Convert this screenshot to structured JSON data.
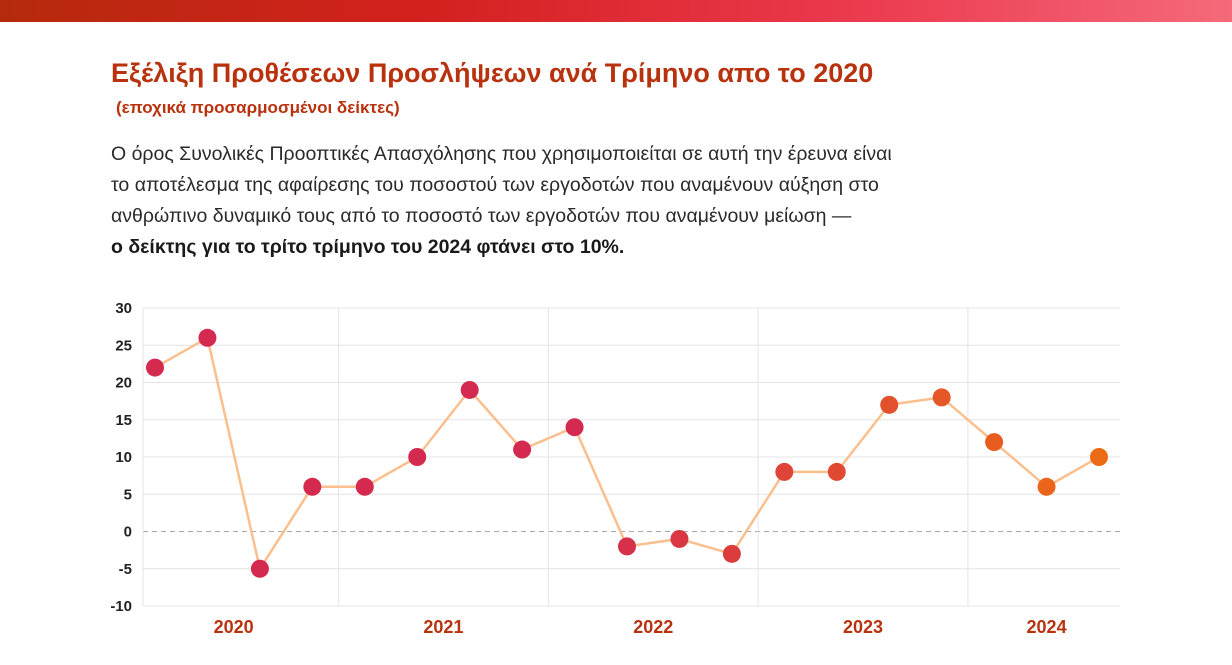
{
  "header": {
    "title": "Εξέλιξη Προθέσεων Προσλήψεων ανά Τρίμηνο απο το 2020",
    "subtitle": "(εποχικά προσαρμοσμένοι δείκτες)"
  },
  "description": {
    "line1": "Ο όρος Συνολικές Προοπτικές Απασχόλησης που χρησιμοποιείται σε αυτή την έρευνα είναι",
    "line2": "το αποτέλεσμα της αφαίρεσης του ποσοστού των εργοδοτών που αναμένουν αύξηση στο",
    "line3": "ανθρώπινο δυναμικό τους από το ποσοστό των εργοδοτών που αναμένουν μείωση —",
    "line4_bold": "ο δείκτης για το τρίτο τρίμηνο του 2024 φτάνει στο 10%."
  },
  "chart_data": {
    "type": "line",
    "x": [
      "2020 Q1",
      "2020 Q2",
      "2020 Q3",
      "2020 Q4",
      "2021 Q1",
      "2021 Q2",
      "2021 Q3",
      "2021 Q4",
      "2022 Q1",
      "2022 Q2",
      "2022 Q3",
      "2022 Q4",
      "2023 Q1",
      "2023 Q2",
      "2023 Q3",
      "2023 Q4",
      "2024 Q1",
      "2024 Q2",
      "2024 Q3"
    ],
    "series": [
      {
        "values": [
          22,
          26,
          -5,
          6,
          6,
          10,
          19,
          11,
          14,
          -2,
          -1,
          -3,
          8,
          8,
          17,
          18,
          12,
          6,
          10
        ]
      }
    ],
    "year_labels": [
      "2020",
      "2021",
      "2022",
      "2023",
      "2024"
    ],
    "ylim": [
      -10,
      30
    ],
    "yticks": [
      30,
      25,
      20,
      15,
      10,
      5,
      0,
      -5,
      -10
    ],
    "grid": true,
    "zero_line": "dashed",
    "colors": {
      "line": "#fbbf8e",
      "marker_start": "#d42a50",
      "marker_end": "#ec6a14",
      "year_label": "#b8320e",
      "grid": "#e4e4e4"
    }
  }
}
